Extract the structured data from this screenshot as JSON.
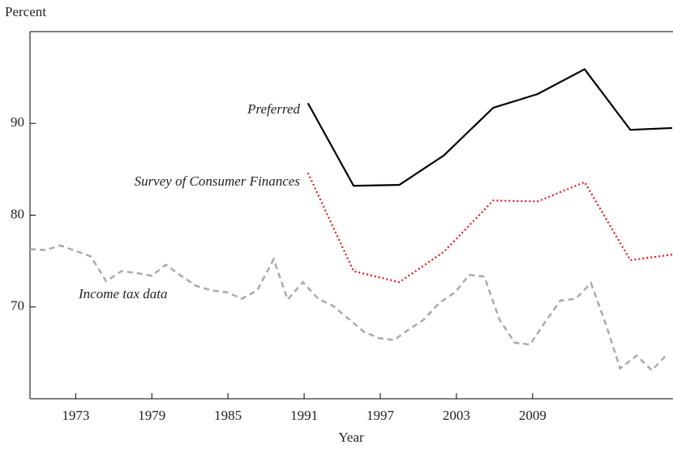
{
  "chart_data": {
    "type": "line",
    "y_axis_label": "Percent",
    "x_axis_label": "Year",
    "xlim": [
      1969.4,
      2020
    ],
    "xticks": [
      1973,
      1979,
      1985,
      1991,
      1997,
      2003,
      2009
    ],
    "ylim": [
      60,
      100
    ],
    "yticks": [
      70,
      80,
      90
    ],
    "series": [
      {
        "name": "Preferred",
        "color": "#000000",
        "style": "solid",
        "x": [
          1991.3,
          1994.9,
          1998.5,
          2002.0,
          2005.9,
          2009.4,
          2013.1,
          2016.7,
          2020.0
        ],
        "values": [
          92.2,
          83.2,
          83.3,
          86.5,
          91.7,
          93.2,
          95.9,
          89.3,
          89.5
        ]
      },
      {
        "name": "Survey of Consumer Finances",
        "color": "#e8141c",
        "style": "dotted",
        "x": [
          1991.3,
          1994.9,
          1998.5,
          2002.0,
          2005.9,
          2009.4,
          2013.1,
          2016.7,
          2020.0
        ],
        "values": [
          84.6,
          73.9,
          72.7,
          76.0,
          81.6,
          81.5,
          83.6,
          75.1,
          75.7
        ]
      },
      {
        "name": "Income tax data",
        "color": "#aaaaaa",
        "style": "dashed",
        "x": [
          1969.4,
          1970.6,
          1971.8,
          1973.0,
          1974.2,
          1975.4,
          1976.6,
          1977.8,
          1979.0,
          1980.1,
          1981.3,
          1982.5,
          1983.7,
          1984.9,
          1986.1,
          1987.3,
          1988.6,
          1989.7,
          1990.9,
          1992.1,
          1993.3,
          1994.5,
          1995.7,
          1996.9,
          1998.1,
          1999.2,
          2000.4,
          2001.7,
          2002.9,
          2004.0,
          2005.2,
          2006.4,
          2007.6,
          2008.8,
          2010.0,
          2011.2,
          2012.4,
          2013.6,
          2014.8,
          2015.9,
          2017.2,
          2018.4,
          2019.5
        ],
        "values": [
          76.3,
          76.2,
          76.7,
          76.1,
          75.5,
          72.8,
          73.9,
          73.7,
          73.4,
          74.6,
          73.4,
          72.3,
          71.8,
          71.6,
          70.9,
          71.8,
          75.2,
          70.8,
          72.7,
          70.9,
          70.1,
          68.7,
          67.3,
          66.6,
          66.4,
          67.5,
          68.6,
          70.5,
          71.6,
          73.5,
          73.3,
          68.6,
          66.1,
          65.9,
          68.4,
          70.7,
          70.9,
          72.6,
          68.0,
          63.3,
          64.7,
          63.1,
          64.7
        ]
      }
    ]
  }
}
